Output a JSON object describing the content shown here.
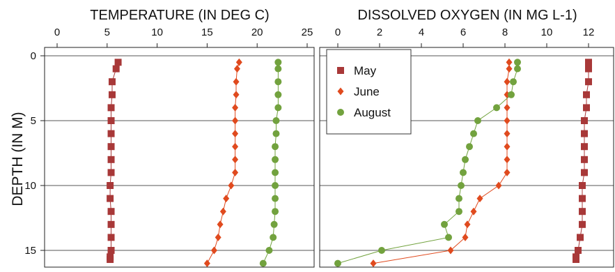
{
  "chart_data": [
    {
      "type": "scatter",
      "title": "TEMPERATURE (IN DEG C)",
      "xlabel": "TEMPERATURE (IN DEG C)",
      "ylabel": "DEPTH (IN M)",
      "xlim": [
        0,
        25
      ],
      "ylim": [
        16,
        0
      ],
      "x_ticks": [
        "0",
        "5",
        "10",
        "15",
        "20",
        "25"
      ],
      "y_ticks": [
        "0",
        "5",
        "10",
        "15"
      ],
      "grid": "horizontal",
      "series": [
        {
          "name": "May",
          "marker": "square",
          "color": "#A83838",
          "x": [
            6.1,
            5.9,
            5.5,
            5.5,
            5.4,
            5.4,
            5.4,
            5.4,
            5.4,
            5.4,
            5.3,
            5.3,
            5.4,
            5.4,
            5.4,
            5.4,
            5.3,
            5.3
          ],
          "y": [
            0.5,
            1.0,
            2.0,
            3.0,
            4.0,
            5.0,
            6.0,
            7.0,
            8.0,
            9.0,
            10.0,
            11.0,
            12.0,
            13.0,
            14.0,
            15.0,
            15.5,
            15.7
          ]
        },
        {
          "name": "June",
          "marker": "diamond",
          "color": "#E04A1E",
          "x": [
            18.2,
            18.0,
            17.9,
            17.9,
            17.8,
            17.8,
            17.8,
            17.8,
            17.8,
            17.8,
            17.4,
            16.9,
            16.6,
            16.3,
            16.1,
            15.7,
            15.0
          ],
          "y": [
            0.5,
            1.0,
            2.0,
            3.0,
            4.0,
            5.0,
            6.0,
            7.0,
            8.0,
            9.0,
            10.0,
            11.0,
            12.0,
            13.0,
            14.0,
            15.0,
            16.0
          ]
        },
        {
          "name": "August",
          "marker": "circle",
          "color": "#72A23E",
          "x": [
            22.1,
            22.1,
            22.1,
            22.1,
            22.1,
            21.9,
            21.9,
            21.8,
            21.8,
            21.8,
            21.8,
            21.8,
            21.8,
            21.7,
            21.6,
            21.2,
            20.6
          ],
          "y": [
            0.5,
            1.0,
            2.0,
            3.0,
            4.0,
            5.0,
            6.0,
            7.0,
            8.0,
            9.0,
            10.0,
            11.0,
            12.0,
            13.0,
            14.0,
            15.0,
            16.0
          ]
        }
      ]
    },
    {
      "type": "scatter",
      "title": "DISSOLVED OXYGEN (IN MG L-1)",
      "xlabel": "DISSOLVED OXYGEN (IN MG L-1)",
      "ylabel": "DEPTH (IN M)",
      "xlim": [
        0,
        13
      ],
      "ylim": [
        16,
        0
      ],
      "x_ticks": [
        "0",
        "2",
        "4",
        "6",
        "8",
        "10",
        "12"
      ],
      "y_ticks": [
        "0",
        "5",
        "10",
        "15"
      ],
      "grid": "horizontal",
      "legend": {
        "position": "top-left",
        "entries": [
          "May",
          "June",
          "August"
        ]
      },
      "series": [
        {
          "name": "May",
          "marker": "square",
          "color": "#A83838",
          "x": [
            12.0,
            12.0,
            12.0,
            11.9,
            11.9,
            11.8,
            11.8,
            11.8,
            11.8,
            11.8,
            11.7,
            11.7,
            11.7,
            11.7,
            11.6,
            11.5,
            11.4,
            11.4
          ],
          "y": [
            0.5,
            1.0,
            2.0,
            3.0,
            4.0,
            5.0,
            6.0,
            7.0,
            8.0,
            9.0,
            10.0,
            11.0,
            12.0,
            13.0,
            14.0,
            15.0,
            15.5,
            15.7
          ]
        },
        {
          "name": "June",
          "marker": "diamond",
          "color": "#E04A1E",
          "x": [
            8.2,
            8.2,
            8.1,
            8.1,
            8.1,
            8.1,
            8.1,
            8.1,
            8.1,
            8.1,
            7.7,
            6.8,
            6.5,
            6.2,
            6.1,
            5.4,
            1.7
          ],
          "y": [
            0.5,
            1.0,
            2.0,
            3.0,
            4.0,
            5.0,
            6.0,
            7.0,
            8.0,
            9.0,
            10.0,
            11.0,
            12.0,
            13.0,
            14.0,
            15.0,
            16.0
          ]
        },
        {
          "name": "August",
          "marker": "circle",
          "color": "#72A23E",
          "x": [
            8.6,
            8.6,
            8.4,
            8.3,
            7.6,
            6.7,
            6.5,
            6.3,
            6.1,
            6.0,
            5.9,
            5.8,
            5.8,
            5.1,
            5.3,
            2.1,
            0.0
          ],
          "y": [
            0.5,
            1.0,
            2.0,
            3.0,
            4.0,
            5.0,
            6.0,
            7.0,
            8.0,
            9.0,
            10.0,
            11.0,
            12.0,
            13.0,
            14.0,
            15.0,
            16.0
          ]
        }
      ]
    }
  ]
}
